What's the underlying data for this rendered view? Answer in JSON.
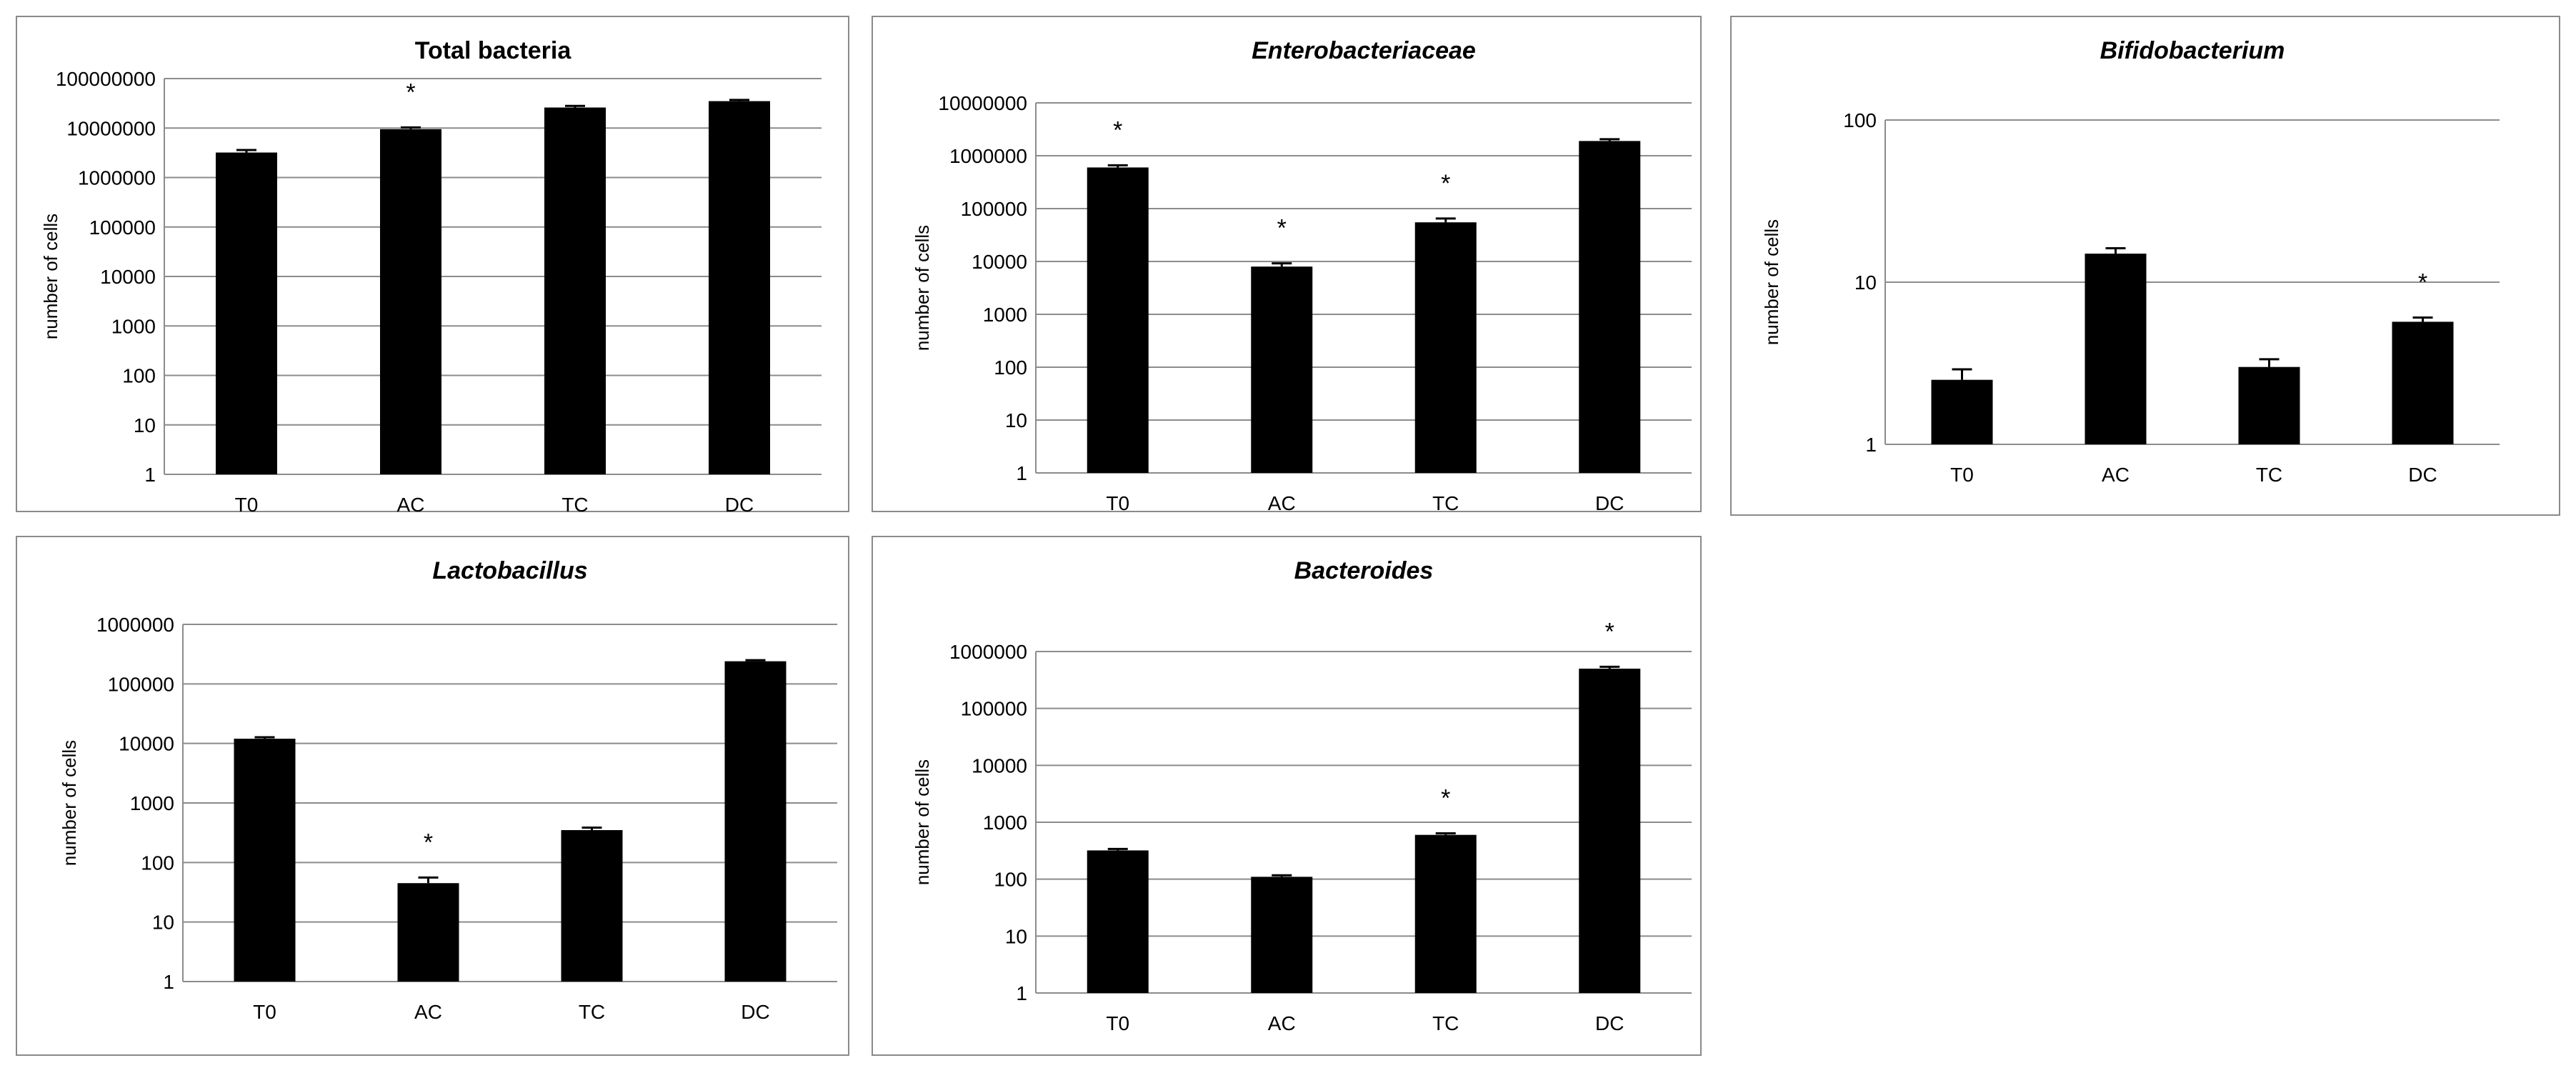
{
  "chart_data": [
    {
      "type": "bar",
      "title": "Total bacteria",
      "title_italic": false,
      "ylabel": "number of cells",
      "yscale": "log",
      "ylim": [
        1,
        100000000
      ],
      "yticks": [
        "1",
        "10",
        "100",
        "1000",
        "10000",
        "100000",
        "1000000",
        "10000000",
        "100000000"
      ],
      "categories": [
        "T0",
        "AC",
        "TC",
        "DC"
      ],
      "values": [
        3200000,
        9500000,
        26000000,
        35000000
      ],
      "errors_upper": [
        3600000,
        10300000,
        28000000,
        37000000
      ],
      "significant": [
        false,
        true,
        false,
        false
      ],
      "significance_marker": "*",
      "grid": true,
      "bar_color": "#000000"
    },
    {
      "type": "bar",
      "title": "Enterobacteriaceae",
      "title_italic": true,
      "ylabel": "number of cells",
      "yscale": "log",
      "ylim": [
        1,
        10000000
      ],
      "yticks": [
        "1",
        "10",
        "100",
        "1000",
        "10000",
        "100000",
        "1000000",
        "10000000"
      ],
      "categories": [
        "T0",
        "AC",
        "TC",
        "DC"
      ],
      "values": [
        600000,
        8000,
        55000,
        1900000
      ],
      "errors_upper": [
        660000,
        9200,
        65000,
        2050000
      ],
      "significant": [
        true,
        true,
        true,
        false
      ],
      "significance_marker": "*",
      "grid": true,
      "bar_color": "#000000"
    },
    {
      "type": "bar",
      "title": "Bifidobacterium",
      "title_italic": true,
      "ylabel": "number of cells",
      "yscale": "log",
      "ylim": [
        1,
        100
      ],
      "yticks": [
        "1",
        "10",
        "100"
      ],
      "categories": [
        "T0",
        "AC",
        "TC",
        "DC"
      ],
      "values": [
        2.5,
        15,
        3.0,
        5.7
      ],
      "errors_upper": [
        2.9,
        16.2,
        3.35,
        6.05
      ],
      "significant": [
        false,
        false,
        false,
        true
      ],
      "significance_marker": "*",
      "grid": true,
      "bar_color": "#000000"
    },
    {
      "type": "bar",
      "title": "Lactobacillus",
      "title_italic": true,
      "ylabel": "number of cells",
      "yscale": "log",
      "ylim": [
        1,
        1000000
      ],
      "yticks": [
        "1",
        "10",
        "100",
        "1000",
        "10000",
        "100000",
        "1000000"
      ],
      "categories": [
        "T0",
        "AC",
        "TC",
        "DC"
      ],
      "values": [
        12000,
        45,
        350,
        240000
      ],
      "errors_upper": [
        12700,
        56,
        385,
        250000
      ],
      "significant": [
        false,
        true,
        false,
        false
      ],
      "significance_marker": "*",
      "grid": true,
      "bar_color": "#000000"
    },
    {
      "type": "bar",
      "title": "Bacteroides",
      "title_italic": true,
      "ylabel": "number of cells",
      "yscale": "log",
      "ylim": [
        1,
        1000000
      ],
      "yticks": [
        "1",
        "10",
        "100",
        "1000",
        "10000",
        "100000",
        "1000000"
      ],
      "categories": [
        "T0",
        "AC",
        "TC",
        "DC"
      ],
      "values": [
        320,
        110,
        600,
        500000
      ],
      "errors_upper": [
        340,
        117,
        640,
        540000
      ],
      "significant": [
        false,
        false,
        true,
        true
      ],
      "significance_marker": "*",
      "grid": true,
      "bar_color": "#000000"
    }
  ]
}
